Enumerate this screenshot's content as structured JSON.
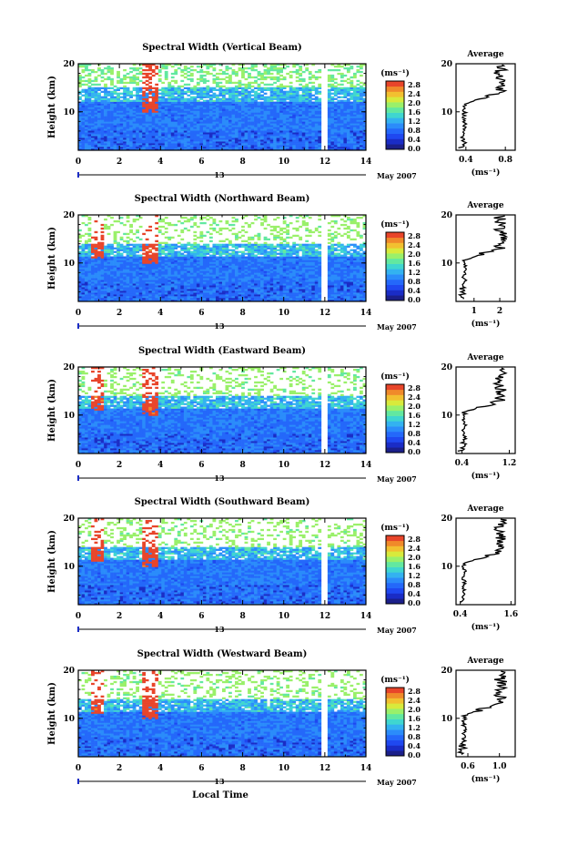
{
  "chart_data": [
    {
      "type": "heatmap",
      "title": "Spectral Width (Vertical Beam)",
      "ylabel": "Height (km)",
      "ylim": [
        2,
        20
      ],
      "yticks": [
        "10",
        "20"
      ],
      "xlim": [
        0,
        14
      ],
      "xticks": [
        "0",
        "2",
        "4",
        "6",
        "8",
        "10",
        "12",
        "14"
      ],
      "date_label": "13",
      "month_label": "May 2007",
      "colorbar": {
        "unit": "(ms⁻¹)",
        "ticks": [
          "2.8",
          "2.4",
          "2.0",
          "1.6",
          "1.2",
          "0.8",
          "0.4",
          "0.0"
        ]
      },
      "profile": {
        "title": "Average",
        "xlabel": "(ms⁻¹)",
        "xticks": [
          "0.4",
          "0.8"
        ],
        "xlim": [
          0.3,
          0.9
        ],
        "yticks": [
          "10",
          "20"
        ]
      }
    },
    {
      "type": "heatmap",
      "title": "Spectral Width (Northward Beam)",
      "ylabel": "Height (km)",
      "ylim": [
        2,
        20
      ],
      "yticks": [
        "10",
        "20"
      ],
      "xlim": [
        0,
        14
      ],
      "xticks": [
        "0",
        "2",
        "4",
        "6",
        "8",
        "10",
        "12",
        "14"
      ],
      "date_label": "13",
      "month_label": "May 2007",
      "colorbar": {
        "unit": "(ms⁻¹)",
        "ticks": [
          "2.8",
          "2.4",
          "2.0",
          "1.6",
          "1.2",
          "0.8",
          "0.4",
          "0.0"
        ]
      },
      "profile": {
        "title": "Average",
        "xlabel": "(ms⁻¹)",
        "xticks": [
          "1",
          "2"
        ],
        "xlim": [
          0.3,
          2.6
        ],
        "yticks": [
          "10",
          "20"
        ]
      }
    },
    {
      "type": "heatmap",
      "title": "Spectral Width (Eastward Beam)",
      "ylabel": "Height (km)",
      "ylim": [
        2,
        20
      ],
      "yticks": [
        "10",
        "20"
      ],
      "xlim": [
        0,
        14
      ],
      "xticks": [
        "0",
        "2",
        "4",
        "6",
        "8",
        "10",
        "12",
        "14"
      ],
      "date_label": "13",
      "month_label": "May 2007",
      "colorbar": {
        "unit": "(ms⁻¹)",
        "ticks": [
          "2.8",
          "2.4",
          "2.0",
          "1.6",
          "1.2",
          "0.8",
          "0.4",
          "0.0"
        ]
      },
      "profile": {
        "title": "Average",
        "xlabel": "(ms⁻¹)",
        "xticks": [
          "0.4",
          "1.2"
        ],
        "xlim": [
          0.3,
          1.3
        ],
        "yticks": [
          "10",
          "20"
        ]
      }
    },
    {
      "type": "heatmap",
      "title": "Spectral Width (Southward Beam)",
      "ylabel": "Height (km)",
      "ylim": [
        2,
        20
      ],
      "yticks": [
        "10",
        "20"
      ],
      "xlim": [
        0,
        14
      ],
      "xticks": [
        "0",
        "2",
        "4",
        "6",
        "8",
        "10",
        "12",
        "14"
      ],
      "date_label": "13",
      "month_label": "May 2007",
      "colorbar": {
        "unit": "(ms⁻¹)",
        "ticks": [
          "2.8",
          "2.4",
          "2.0",
          "1.6",
          "1.2",
          "0.8",
          "0.4",
          "0.0"
        ]
      },
      "profile": {
        "title": "Average",
        "xlabel": "(ms⁻¹)",
        "xticks": [
          "0.4",
          "1.6"
        ],
        "xlim": [
          0.3,
          1.7
        ],
        "yticks": [
          "10",
          "20"
        ]
      }
    },
    {
      "type": "heatmap",
      "title": "Spectral Width (Westward Beam)",
      "ylabel": "Height (km)",
      "ylim": [
        2,
        20
      ],
      "yticks": [
        "10",
        "20"
      ],
      "xlim": [
        0,
        14
      ],
      "xticks": [
        "0",
        "2",
        "4",
        "6",
        "8",
        "10",
        "12",
        "14"
      ],
      "date_label": "13",
      "month_label": "May 2007",
      "xlabel": "Local Time",
      "colorbar": {
        "unit": "(ms⁻¹)",
        "ticks": [
          "2.8",
          "2.4",
          "2.0",
          "1.6",
          "1.2",
          "0.8",
          "0.4",
          "0.0"
        ]
      },
      "profile": {
        "title": "Average",
        "xlabel": "(ms⁻¹)",
        "xticks": [
          "0.6",
          "1.0"
        ],
        "xlim": [
          0.45,
          1.2
        ],
        "yticks": [
          "10",
          "20"
        ]
      }
    }
  ]
}
